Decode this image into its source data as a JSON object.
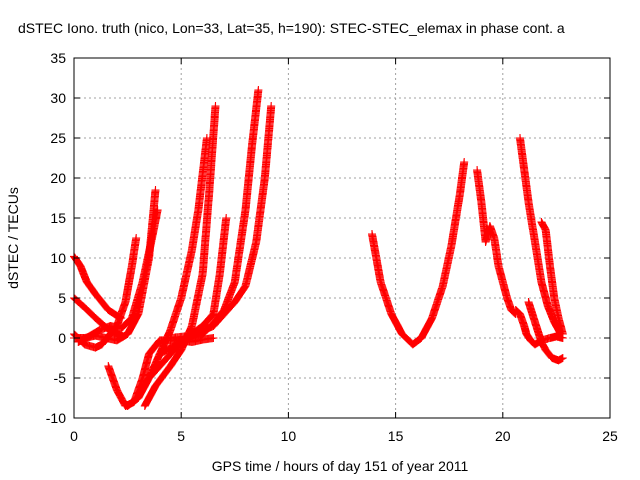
{
  "chart_data": {
    "type": "scatter",
    "title": "dSTEC Iono. truth (nico, Lon=33, Lat=35, h=190): STEC-STEC_elemax in phase cont. a",
    "xlabel": "GPS time / hours of day 151 of year 2011",
    "ylabel": "dSTEC  / TECUs",
    "xlim": [
      0,
      25
    ],
    "ylim": [
      -10,
      35
    ],
    "xticks": [
      0,
      5,
      10,
      15,
      20,
      25
    ],
    "yticks": [
      -10,
      -5,
      0,
      5,
      10,
      15,
      20,
      25,
      30,
      35
    ],
    "grid": true,
    "marker": "plus",
    "color": "#ff0000",
    "series": [
      {
        "x": [
          0.0,
          0.3,
          0.6,
          1.0,
          1.3,
          1.6,
          2.0,
          2.2
        ],
        "y": [
          10.2,
          9.0,
          7.0,
          5.5,
          4.5,
          3.5,
          2.8,
          2.5
        ]
      },
      {
        "x": [
          0.0,
          0.5,
          1.0,
          1.5,
          2.0,
          2.3
        ],
        "y": [
          5.0,
          3.8,
          2.5,
          1.3,
          0.5,
          0.2
        ]
      },
      {
        "x": [
          0.0,
          0.5,
          1.0,
          1.3,
          1.6,
          2.0,
          2.4,
          2.7,
          2.9
        ],
        "y": [
          0.5,
          -0.8,
          -1.2,
          -0.8,
          0.2,
          1.5,
          4.5,
          9.0,
          12.5
        ]
      },
      {
        "x": [
          0.0,
          0.5,
          1.0,
          1.5,
          2.0,
          2.5,
          3.0,
          3.5,
          3.8
        ],
        "y": [
          0.0,
          0.0,
          0.3,
          0.0,
          -0.3,
          0.5,
          3.0,
          10.0,
          18.5
        ]
      },
      {
        "x": [
          0.2,
          0.7,
          1.2,
          1.7,
          2.2,
          2.7,
          3.2,
          3.6,
          3.9
        ],
        "y": [
          -0.5,
          0.2,
          1.0,
          1.5,
          1.2,
          2.5,
          7.0,
          12.0,
          16.0
        ]
      },
      {
        "x": [
          1.6,
          2.0,
          2.4,
          2.8,
          3.2,
          3.5,
          4.0,
          4.5,
          5.0,
          5.5,
          6.0,
          6.5
        ],
        "y": [
          -3.5,
          -6.5,
          -8.5,
          -8.0,
          -5.0,
          -2.0,
          -0.3,
          -0.3,
          -0.3,
          -0.5,
          -0.2,
          0.0
        ]
      },
      {
        "x": [
          2.5,
          3.0,
          3.5,
          4.0,
          4.5,
          5.0,
          5.5,
          5.8,
          6.2
        ],
        "y": [
          -8.5,
          -7.5,
          -5.0,
          -2.0,
          1.0,
          5.0,
          11.0,
          16.0,
          25.0
        ]
      },
      {
        "x": [
          3.3,
          3.8,
          4.5,
          5.0,
          5.5,
          6.0,
          6.3,
          6.6
        ],
        "y": [
          -8.5,
          -6.0,
          -3.5,
          -1.5,
          1.5,
          8.0,
          18.0,
          29.0
        ]
      },
      {
        "x": [
          3.5,
          4.0,
          4.5,
          5.0,
          5.5,
          6.0,
          6.5,
          6.8,
          7.1
        ],
        "y": [
          -5.0,
          -3.5,
          -2.0,
          -0.5,
          0.5,
          1.5,
          3.0,
          8.0,
          15.0
        ]
      },
      {
        "x": [
          4.0,
          5.0,
          6.0,
          6.5,
          7.0,
          7.5,
          8.0,
          8.3,
          8.6
        ],
        "y": [
          -2.0,
          -0.5,
          0.5,
          1.8,
          3.5,
          7.0,
          16.0,
          24.0,
          31.0
        ]
      },
      {
        "x": [
          4.5,
          5.5,
          6.5,
          7.0,
          7.5,
          8.0,
          8.5,
          8.9,
          9.2
        ],
        "y": [
          0.0,
          0.3,
          1.5,
          3.0,
          4.5,
          6.5,
          12.0,
          20.0,
          29.0
        ]
      },
      {
        "x": [
          13.9,
          14.3,
          14.8,
          15.3,
          15.8,
          16.2,
          16.7,
          17.2,
          17.6,
          18.0,
          18.2
        ],
        "y": [
          13.0,
          7.0,
          3.0,
          0.5,
          -0.8,
          0.0,
          2.5,
          6.5,
          11.5,
          18.0,
          22.0
        ]
      },
      {
        "x": [
          18.8,
          19.0,
          19.2,
          19.4,
          19.6,
          19.8,
          20.0,
          20.2,
          20.4,
          20.6
        ],
        "y": [
          21.0,
          17.0,
          12.0,
          14.0,
          12.5,
          9.0,
          7.0,
          5.0,
          3.5,
          3.0
        ]
      },
      {
        "x": [
          20.6,
          20.8,
          21.0,
          21.1,
          21.3,
          21.5,
          21.8,
          22.2,
          22.5,
          22.8
        ],
        "y": [
          3.5,
          3.0,
          1.5,
          0.5,
          -0.3,
          -0.8,
          -0.3,
          0.0,
          0.2,
          0.0
        ]
      },
      {
        "x": [
          20.8,
          21.0,
          21.2,
          21.5,
          21.8,
          22.1,
          22.4,
          22.7
        ],
        "y": [
          25.0,
          21.0,
          17.0,
          12.0,
          7.0,
          4.0,
          2.0,
          0.5
        ]
      },
      {
        "x": [
          21.2,
          21.5,
          21.8,
          22.0,
          22.3,
          22.6,
          22.8
        ],
        "y": [
          4.5,
          2.0,
          -0.5,
          -1.5,
          -2.5,
          -2.8,
          -2.5
        ]
      },
      {
        "x": [
          21.8,
          22.0,
          22.2,
          22.4,
          22.6,
          22.8
        ],
        "y": [
          14.5,
          13.5,
          9.0,
          5.0,
          2.5,
          0.5
        ]
      }
    ]
  }
}
